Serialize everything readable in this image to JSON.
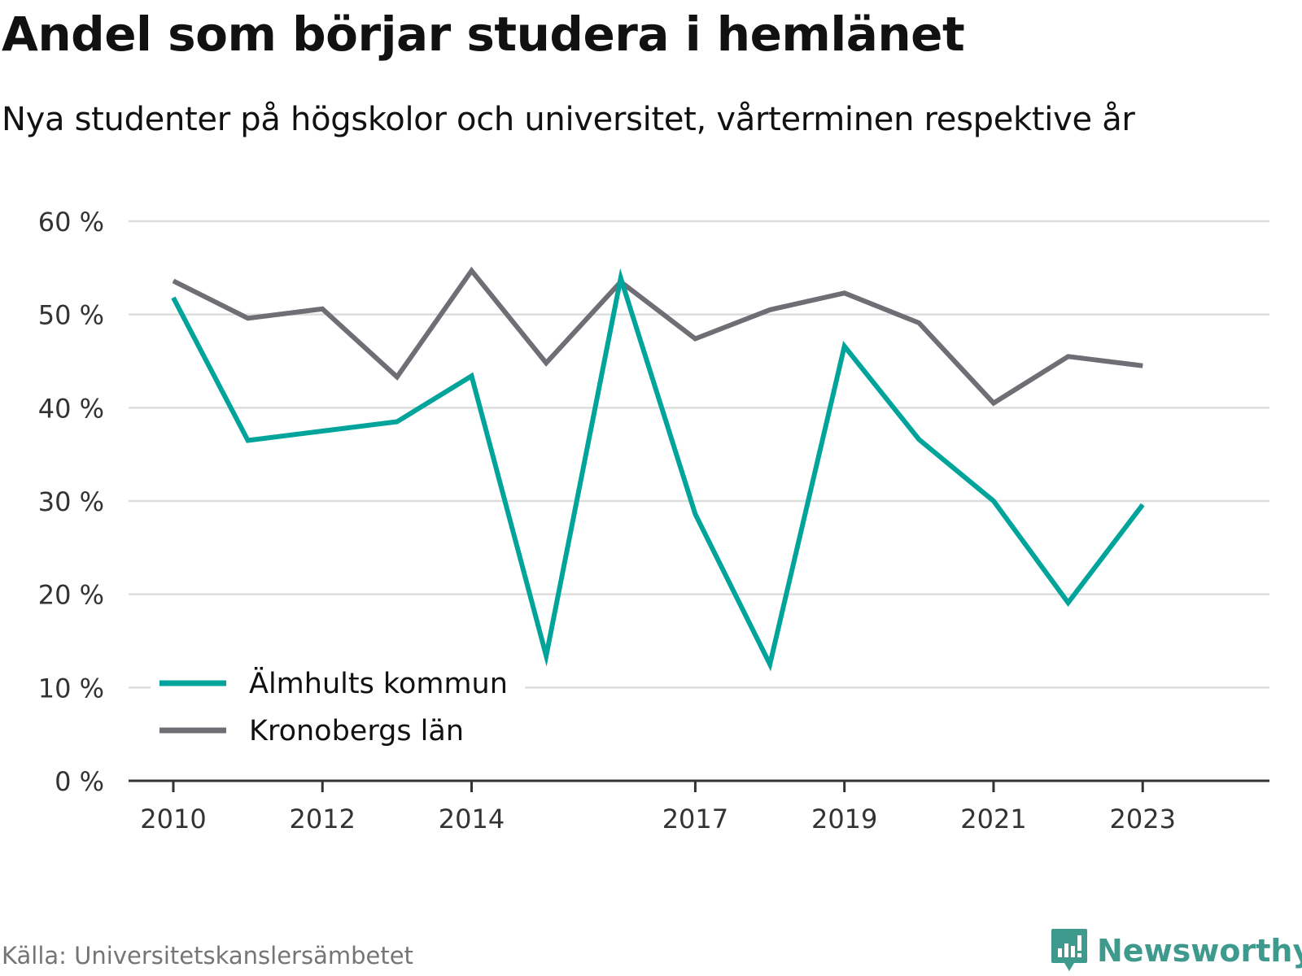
{
  "title": "Andel som börjar studera i hemlänet",
  "subtitle": "Nya studenter på högskolor och universitet, vårterminen respektive år",
  "source": "Källa: Universitetskanslersämbetet",
  "brand": {
    "name": "Newsworthy",
    "icon": "newsworthy-logo-icon",
    "color": "#3f9a8e"
  },
  "chart_data": {
    "type": "line",
    "x": [
      2010,
      2011,
      2012,
      2013,
      2014,
      2015,
      2016,
      2017,
      2018,
      2019,
      2020,
      2021,
      2022,
      2023
    ],
    "x_tick_labels": [
      "2010",
      "2012",
      "2014",
      "2017",
      "2019",
      "2021",
      "2023"
    ],
    "y_ticks": [
      0,
      10,
      20,
      30,
      40,
      50,
      60
    ],
    "y_tick_labels": [
      "0 %",
      "10 %",
      "20 %",
      "30 %",
      "40 %",
      "50 %",
      "60 %"
    ],
    "ylim": [
      0,
      60
    ],
    "xlim": [
      2009.4,
      2024.7
    ],
    "grid": true,
    "legend_position": "bottom-left",
    "series": [
      {
        "name": "Älmhults kommun",
        "color": "#00a49a",
        "values": [
          51.8,
          36.5,
          37.5,
          38.5,
          43.4,
          13.4,
          53.9,
          28.6,
          12.5,
          46.6,
          36.6,
          30.0,
          19.1,
          29.6
        ]
      },
      {
        "name": "Kronobergs län",
        "color": "#6f6e75",
        "values": [
          53.6,
          49.6,
          50.6,
          43.3,
          54.7,
          44.8,
          53.5,
          47.4,
          50.5,
          52.3,
          49.1,
          40.5,
          45.5,
          44.5
        ]
      }
    ]
  }
}
